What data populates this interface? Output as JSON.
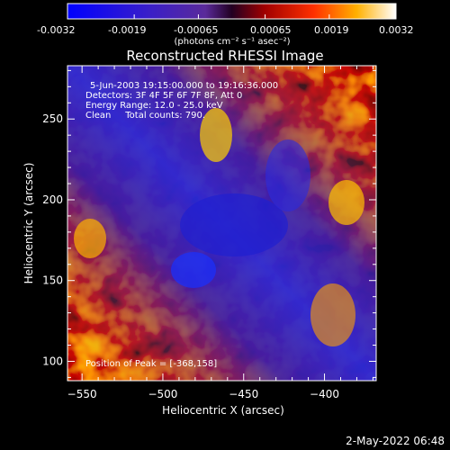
{
  "colorbar": {
    "tick_labels": [
      "-0.0032",
      "-0.0019",
      "-0.00065",
      "0.00065",
      "0.0019",
      "0.0032"
    ],
    "unit_label": "(photons cm⁻² s⁻¹ asec⁻²)",
    "range": [
      -0.0032,
      0.0032
    ]
  },
  "title": "Reconstructed RHESSI Image",
  "info": {
    "time": "5-Jun-2003 19:15:00.000 to 19:16:36.000",
    "detectors": "Detectors: 3F 4F 5F 6F 7F 8F, Att 0",
    "energy": "Energy Range: 12.0 - 25.0 keV",
    "clean": "Clean     Total counts: 790."
  },
  "peak_label": "Position of Peak = [-368,158]",
  "xlabel": "Heliocentric X (arcsec)",
  "ylabel": "Heliocentric Y (arcsec)",
  "footer_date": "2-May-2022 06:48",
  "chart_data": {
    "type": "heatmap",
    "x_ticks": [
      -550,
      -500,
      -450,
      -400
    ],
    "y_ticks": [
      100,
      150,
      200,
      250
    ],
    "xlim": [
      -559,
      -368
    ],
    "ylim": [
      88,
      283
    ],
    "peak": [
      -368,
      158
    ],
    "colormap": "hot-cold (blue to white)"
  }
}
